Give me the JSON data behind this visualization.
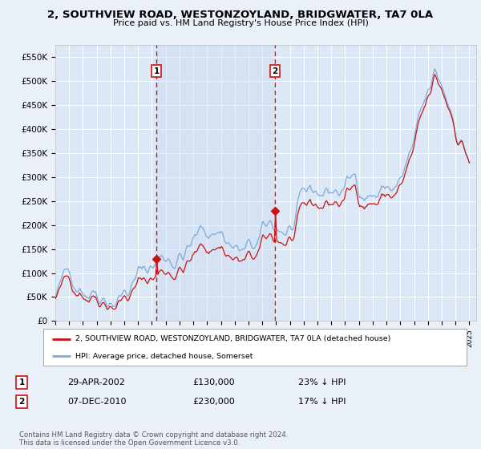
{
  "title": "2, SOUTHVIEW ROAD, WESTONZOYLAND, BRIDGWATER, TA7 0LA",
  "subtitle": "Price paid vs. HM Land Registry's House Price Index (HPI)",
  "ylim": [
    0,
    575000
  ],
  "yticks": [
    0,
    50000,
    100000,
    150000,
    200000,
    250000,
    300000,
    350000,
    400000,
    450000,
    500000,
    550000
  ],
  "ytick_labels": [
    "£0",
    "£50K",
    "£100K",
    "£150K",
    "£200K",
    "£250K",
    "£300K",
    "£350K",
    "£400K",
    "£450K",
    "£500K",
    "£550K"
  ],
  "xlim_start": 1995.0,
  "xlim_end": 2025.5,
  "background_color": "#eaf0f8",
  "plot_bg_color": "#dce8f5",
  "grid_color": "#ffffff",
  "transaction1_x": 2002.32,
  "transaction1_y": 130000,
  "transaction2_x": 2010.92,
  "transaction2_y": 230000,
  "hpi_line_color": "#7aabdb",
  "price_line_color": "#cc1111",
  "vline_color": "#cc1111",
  "shade_color": "#c8d8f0",
  "legend_label_property": "2, SOUTHVIEW ROAD, WESTONZOYLAND, BRIDGWATER, TA7 0LA (detached house)",
  "legend_label_hpi": "HPI: Average price, detached house, Somerset",
  "transaction1_date": "29-APR-2002",
  "transaction1_price": "£130,000",
  "transaction1_hpi": "23% ↓ HPI",
  "transaction2_date": "07-DEC-2010",
  "transaction2_price": "£230,000",
  "transaction2_hpi": "17% ↓ HPI",
  "footnote": "Contains HM Land Registry data © Crown copyright and database right 2024.\nThis data is licensed under the Open Government Licence v3.0."
}
